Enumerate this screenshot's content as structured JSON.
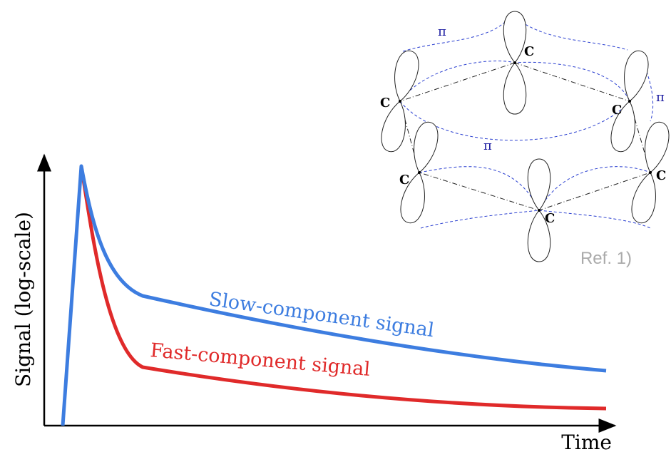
{
  "axes": {
    "y_label": "Signal (log-scale)",
    "x_label": "Time"
  },
  "curves": [
    {
      "label": "Slow-component signal"
    },
    {
      "label": "Fast-component signal"
    }
  ],
  "molecule": {
    "atoms": [
      "C",
      "C",
      "C",
      "C",
      "C",
      "C"
    ],
    "bonds": [
      "π",
      "π",
      "π"
    ]
  },
  "reference": "Ref. 1)"
}
